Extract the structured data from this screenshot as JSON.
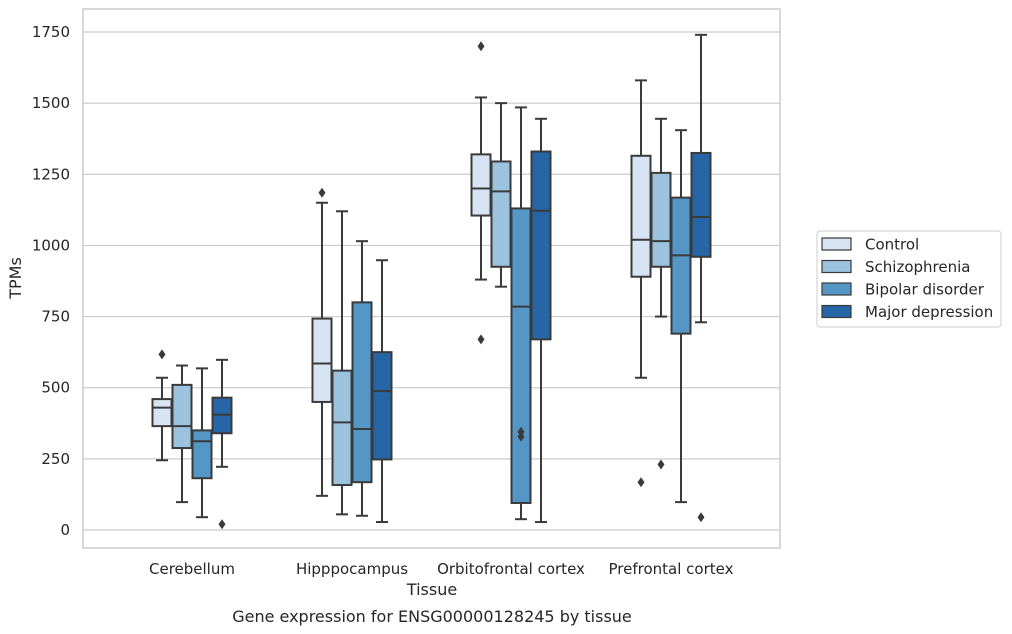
{
  "chart_data": {
    "type": "box",
    "caption": "Gene expression for ENSG00000128245 by tissue",
    "xlabel": "Tissue",
    "ylabel": "TPMs",
    "ylim": [
      -65,
      1815
    ],
    "yticks": [
      0,
      250,
      500,
      750,
      1000,
      1250,
      1500,
      1750
    ],
    "ytick_labels": [
      "0",
      "250",
      "500",
      "750",
      "1000",
      "1250",
      "1500",
      "1750"
    ],
    "grid": "horizontal",
    "legend_position": "right",
    "categories": [
      "Cerebellum",
      "Hipppocampus",
      "Orbitofrontal cortex",
      "Prefrontal cortex"
    ],
    "series": [
      {
        "name": "Control",
        "color": "#d6e4f3",
        "boxes": [
          {
            "whisker_low": 245,
            "q1": 365,
            "median": 430,
            "q3": 460,
            "whisker_high": 535,
            "outliers": [
              617
            ]
          },
          {
            "whisker_low": 120,
            "q1": 450,
            "median": 585,
            "q3": 743,
            "whisker_high": 1150,
            "outliers": [
              1185
            ]
          },
          {
            "whisker_low": 880,
            "q1": 1105,
            "median": 1200,
            "q3": 1320,
            "whisker_high": 1520,
            "outliers": [
              1700,
              670
            ]
          },
          {
            "whisker_low": 535,
            "q1": 890,
            "median": 1020,
            "q3": 1315,
            "whisker_high": 1580,
            "outliers": [
              168
            ]
          }
        ]
      },
      {
        "name": "Schizophrenia",
        "color": "#9cc3de",
        "boxes": [
          {
            "whisker_low": 98,
            "q1": 288,
            "median": 365,
            "q3": 510,
            "whisker_high": 578,
            "outliers": []
          },
          {
            "whisker_low": 55,
            "q1": 158,
            "median": 378,
            "q3": 560,
            "whisker_high": 1120,
            "outliers": []
          },
          {
            "whisker_low": 855,
            "q1": 925,
            "median": 1190,
            "q3": 1295,
            "whisker_high": 1500,
            "outliers": []
          },
          {
            "whisker_low": 750,
            "q1": 925,
            "median": 1015,
            "q3": 1255,
            "whisker_high": 1445,
            "outliers": [
              230
            ]
          }
        ]
      },
      {
        "name": "Bipolar disorder",
        "color": "#5497c6",
        "boxes": [
          {
            "whisker_low": 45,
            "q1": 182,
            "median": 312,
            "q3": 350,
            "whisker_high": 568,
            "outliers": []
          },
          {
            "whisker_low": 50,
            "q1": 168,
            "median": 355,
            "q3": 800,
            "whisker_high": 1015,
            "outliers": []
          },
          {
            "whisker_low": 38,
            "q1": 95,
            "median": 785,
            "q3": 1130,
            "whisker_high": 1485,
            "outliers": [
              345,
              328
            ]
          },
          {
            "whisker_low": 98,
            "q1": 690,
            "median": 965,
            "q3": 1168,
            "whisker_high": 1405,
            "outliers": []
          }
        ]
      },
      {
        "name": "Major depression",
        "color": "#2766a6",
        "boxes": [
          {
            "whisker_low": 222,
            "q1": 340,
            "median": 405,
            "q3": 465,
            "whisker_high": 598,
            "outliers": [
              20
            ]
          },
          {
            "whisker_low": 28,
            "q1": 248,
            "median": 488,
            "q3": 625,
            "whisker_high": 948,
            "outliers": []
          },
          {
            "whisker_low": 28,
            "q1": 670,
            "median": 1122,
            "q3": 1330,
            "whisker_high": 1445,
            "outliers": []
          },
          {
            "whisker_low": 730,
            "q1": 960,
            "median": 1100,
            "q3": 1325,
            "whisker_high": 1740,
            "outliers": [
              45
            ]
          }
        ]
      }
    ]
  }
}
